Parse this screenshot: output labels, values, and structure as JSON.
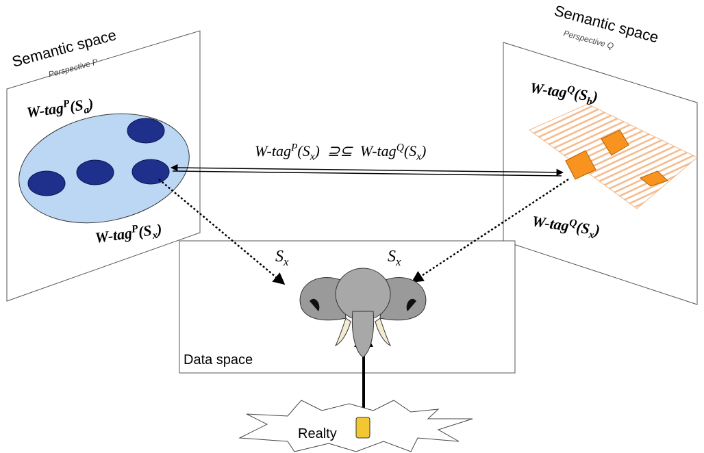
{
  "left_panel": {
    "title": "Semantic space",
    "perspective": "Perspective P",
    "tag_a": {
      "parts": [
        {
          "text": "W-tag"
        },
        {
          "text": "P",
          "shift": "sup"
        },
        {
          "text": "(S"
        },
        {
          "text": "a",
          "shift": "sub"
        },
        {
          "text": ")"
        }
      ]
    },
    "tag_x": {
      "parts": [
        {
          "text": "W-tag"
        },
        {
          "text": "P",
          "shift": "sup"
        },
        {
          "text": "(S"
        },
        {
          "text": "x",
          "shift": "sub"
        },
        {
          "text": ")"
        }
      ]
    }
  },
  "right_panel": {
    "title": "Semantic space",
    "perspective": "Perspective Q",
    "tag_b": {
      "parts": [
        {
          "text": "W-tag"
        },
        {
          "text": "Q",
          "shift": "sup"
        },
        {
          "text": "(S"
        },
        {
          "text": "b",
          "shift": "sub"
        },
        {
          "text": ")"
        }
      ]
    },
    "tag_x": {
      "parts": [
        {
          "text": "W-tag"
        },
        {
          "text": "Q",
          "shift": "sup"
        },
        {
          "text": "(S"
        },
        {
          "text": "x",
          "shift": "sub"
        },
        {
          "text": ")"
        }
      ]
    }
  },
  "relation": {
    "parts": [
      {
        "text": "W-tag"
      },
      {
        "text": "P",
        "shift": "sup"
      },
      {
        "text": "(S"
      },
      {
        "text": "x",
        "shift": "sub"
      },
      {
        "text": ")  ⊇⊆  W-tag"
      },
      {
        "text": "Q",
        "shift": "sup"
      },
      {
        "text": "(S"
      },
      {
        "text": "x",
        "shift": "sub"
      },
      {
        "text": ")"
      }
    ]
  },
  "data_space": {
    "label": "Data space",
    "sx_left": {
      "parts": [
        {
          "text": "S"
        },
        {
          "text": "x",
          "shift": "sub"
        }
      ]
    },
    "sx_right": {
      "parts": [
        {
          "text": "S"
        },
        {
          "text": "x",
          "shift": "sub"
        }
      ]
    }
  },
  "reality": {
    "label": "Realty"
  }
}
